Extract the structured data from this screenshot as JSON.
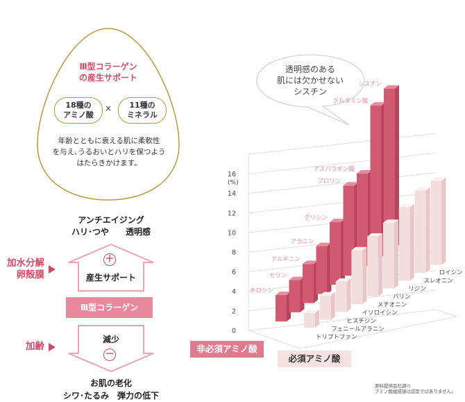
{
  "egg": {
    "title_line1": "Ⅲ型コラーゲン",
    "title_line2": "の産生サポート",
    "pill_left_line1": "18種の",
    "pill_left_line2": "アミノ酸",
    "times": "×",
    "pill_right_line1": "11種の",
    "pill_right_line2": "ミネラル",
    "desc_line1": "年齢とともに衰える肌に柔軟性",
    "desc_line2": "を与え､うるおいとハリを保つよう",
    "desc_line3": "はたらきかけます。"
  },
  "flow": {
    "top_line1": "アンチエイジング",
    "top_line2": "ハリ･つや　　透明感",
    "left_top_line1": "加水分解",
    "left_top_line2": "卵殻膜",
    "plus": "＋",
    "support": "産生サポート",
    "collagen": "Ⅲ型コラーゲン",
    "left_bottom": "加齢",
    "decrease": "減少",
    "minus": "－",
    "bottom_line1": "お肌の老化",
    "bottom_line2": "シワ･たるみ　弾力の低下"
  },
  "bubble": {
    "line1": "透明感のある",
    "line2": "肌には欠かせない",
    "line3": "シスチン"
  },
  "chart_data": {
    "type": "bar",
    "ylabel": "(%)",
    "ylim": [
      0,
      18
    ],
    "yticks": [
      "0",
      "2",
      "4",
      "6",
      "8",
      "10",
      "12",
      "14",
      "16"
    ],
    "grid": true,
    "series": [
      {
        "name": "非必須アミノ酸",
        "color": "#d05a72",
        "categories": [
          "チロシン",
          "セリン",
          "アルギニン",
          "アラニン",
          "グリシン",
          "プロリン",
          "アスパラギン酸",
          "グルタミン酸",
          "シスチン"
        ],
        "values": [
          2.7,
          3.3,
          4.0,
          4.9,
          6.4,
          9.2,
          9.5,
          15.5,
          16.3
        ]
      },
      {
        "name": "必須アミノ酸",
        "color": "#f3dede",
        "categories": [
          "トリプトファン",
          "フェニールアラニン",
          "ヒスチジン",
          "イソロイシン",
          "メチオニン",
          "バリン",
          "リジン",
          "スレオニン",
          "ロイシン"
        ],
        "values": [
          1.5,
          2.5,
          3.1,
          5.5,
          6.1,
          6.7,
          7.5,
          8.4,
          8.6
        ]
      }
    ]
  },
  "legend": {
    "nonessential": "非必須アミノ酸",
    "essential": "必須アミノ酸"
  },
  "note": {
    "line1": "原料提供会社調べ",
    "line2": "アミノ酸組成値は認定ではありません。"
  }
}
